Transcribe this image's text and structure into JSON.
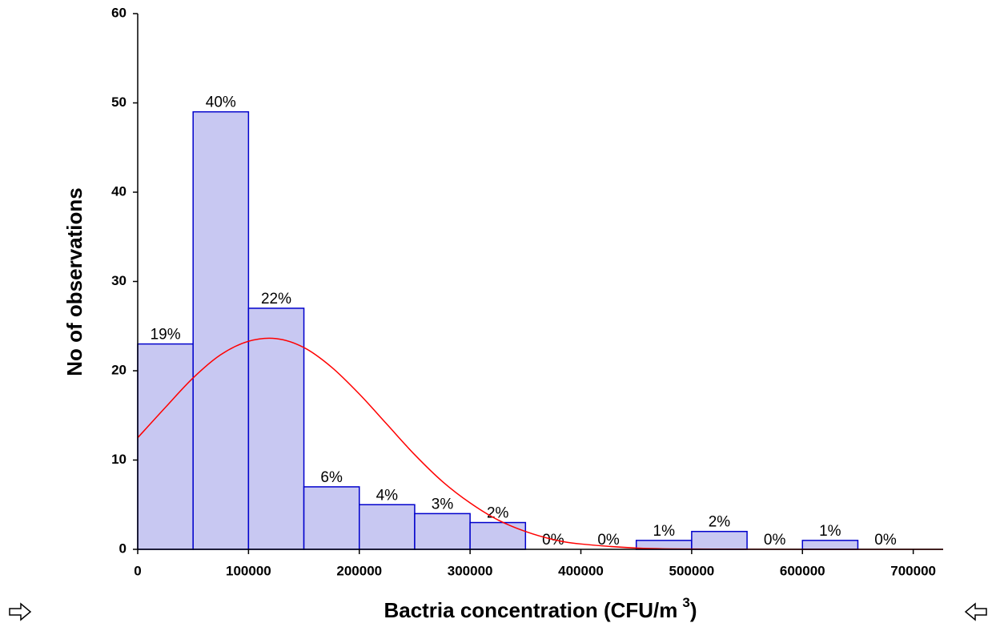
{
  "chart_data": {
    "type": "histogram",
    "x_label": "Bactria concentration (CFU/m",
    "x_label_sup": "3",
    "x_label_end": ")",
    "y_label": "No of observations",
    "bins": [
      0,
      50000,
      100000,
      150000,
      200000,
      250000,
      300000,
      350000,
      400000,
      450000,
      500000,
      550000,
      600000,
      650000,
      700000
    ],
    "values": [
      23,
      49,
      27,
      7,
      5,
      4,
      3,
      0,
      0,
      1,
      2,
      0,
      1,
      0
    ],
    "percents": [
      19,
      40,
      22,
      6,
      4,
      3,
      2,
      0,
      0,
      1,
      2,
      0,
      1,
      0
    ],
    "percent_labels": [
      "19%",
      "40%",
      "22%",
      "6%",
      "4%",
      "3%",
      "2%",
      "0%",
      "0%",
      "1%",
      "2%",
      "0%",
      "1%",
      "0%"
    ],
    "color": "#c8c8f2",
    "edge_color": "#0000cc",
    "curve": {
      "color": "#ff0000",
      "x": [
        0,
        25000,
        50000,
        75000,
        100000,
        125000,
        150000,
        175000,
        200000,
        225000,
        250000,
        275000,
        300000,
        325000,
        350000,
        375000,
        400000,
        450000,
        500000,
        600000,
        727000
      ],
      "values": [
        12.5,
        15.9,
        19.2,
        21.8,
        23.3,
        23.6,
        22.6,
        20.4,
        17.4,
        14.0,
        10.6,
        7.6,
        5.2,
        3.3,
        2.0,
        1.1,
        0.6,
        0.15,
        0.03,
        0,
        0
      ]
    },
    "xlim": [
      0,
      727000
    ],
    "ylim": [
      0,
      60
    ],
    "xticks": [
      0,
      100000,
      200000,
      300000,
      400000,
      500000,
      600000,
      700000
    ],
    "yticks": [
      0,
      10,
      20,
      30,
      40,
      50,
      60
    ]
  }
}
